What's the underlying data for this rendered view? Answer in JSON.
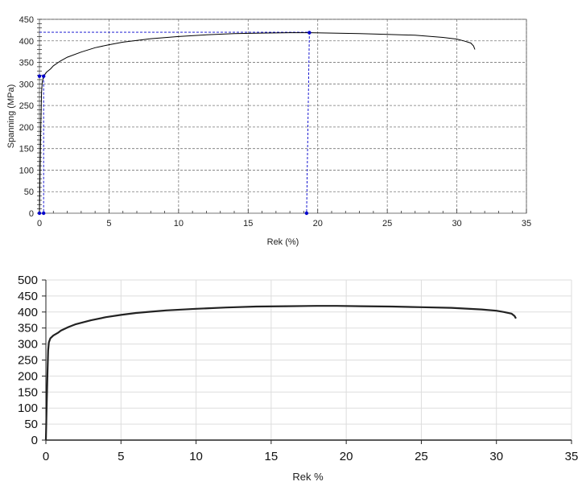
{
  "chart_data": [
    {
      "type": "line",
      "xlabel": "Rek (%)",
      "ylabel": "Spanning (MPa)",
      "xlim": [
        0,
        35
      ],
      "ylim": [
        0,
        450
      ],
      "x_ticks": [
        "0",
        "5",
        "10",
        "15",
        "20",
        "25",
        "30",
        "35"
      ],
      "y_ticks": [
        "0",
        "50",
        "100",
        "150",
        "200",
        "250",
        "300",
        "350",
        "400",
        "450"
      ],
      "grid": "dashed",
      "line_color": "#000000",
      "marker_color": "#0000cc",
      "series": [
        {
          "x": [
            0,
            0.05,
            0.1,
            0.15,
            0.2,
            0.3,
            0.5,
            0.8,
            1,
            1.5,
            2,
            3,
            4,
            5,
            6,
            7,
            8,
            10,
            12,
            14,
            16,
            18,
            19.4,
            21,
            23,
            25,
            27,
            29,
            30,
            30.5,
            31,
            31.2,
            31.3
          ],
          "y": [
            0,
            100,
            200,
            280,
            305,
            318,
            327,
            335,
            342,
            353,
            362,
            374,
            384,
            391,
            397,
            401,
            405,
            410,
            414,
            417,
            418,
            419,
            419,
            418,
            417,
            415,
            413,
            408,
            404,
            400,
            395,
            388,
            380
          ]
        }
      ],
      "markers": [
        {
          "x": 0,
          "y": 0
        },
        {
          "x": 0,
          "y": 318
        },
        {
          "x": 0.3,
          "y": 318
        },
        {
          "x": 0.3,
          "y": 0
        },
        {
          "x": 19.4,
          "y": 419
        },
        {
          "x": 19.2,
          "y": 0
        }
      ],
      "guides": [
        {
          "from": [
            0,
            420
          ],
          "to": [
            19.4,
            420
          ]
        },
        {
          "from": [
            19.4,
            420
          ],
          "to": [
            19.2,
            0
          ]
        },
        {
          "from": [
            0.3,
            318
          ],
          "to": [
            0.3,
            0
          ]
        }
      ]
    },
    {
      "type": "line",
      "xlabel": "Rek %",
      "ylabel": "",
      "xlim": [
        0,
        35
      ],
      "ylim": [
        0,
        500
      ],
      "x_ticks": [
        "0",
        "5",
        "10",
        "15",
        "20",
        "25",
        "30",
        "35"
      ],
      "y_ticks": [
        "0",
        "50",
        "100",
        "150",
        "200",
        "250",
        "300",
        "350",
        "400",
        "450",
        "500"
      ],
      "grid": "solid",
      "line_color": "#222222",
      "series": [
        {
          "x": [
            0,
            0.05,
            0.1,
            0.15,
            0.2,
            0.3,
            0.5,
            0.8,
            1,
            1.5,
            2,
            3,
            4,
            5,
            6,
            7,
            8,
            10,
            12,
            14,
            16,
            18,
            19.4,
            21,
            23,
            25,
            27,
            29,
            30,
            30.5,
            31,
            31.2,
            31.3
          ],
          "y": [
            0,
            100,
            200,
            280,
            305,
            318,
            327,
            335,
            342,
            353,
            362,
            374,
            384,
            391,
            397,
            401,
            405,
            410,
            414,
            417,
            418,
            419,
            419,
            418,
            417,
            415,
            413,
            408,
            404,
            400,
            395,
            388,
            380
          ]
        }
      ]
    }
  ]
}
